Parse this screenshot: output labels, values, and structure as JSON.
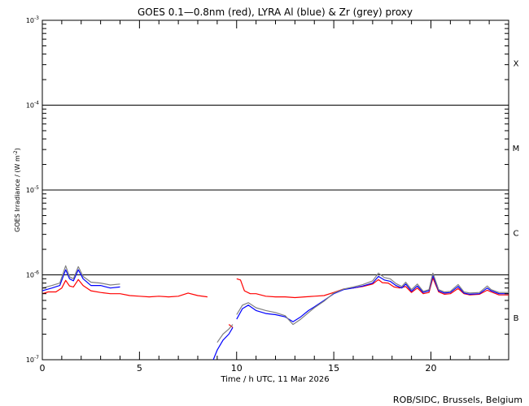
{
  "chart_data": {
    "type": "line",
    "title": "GOES 0.1—0.8nm (red), LYRA Al (blue) & Zr (grey) proxy",
    "xlabel": "Time / h UTC, 11 Mar 2026",
    "ylabel": "GOES Irradiance / (W m",
    "ylabel_sup": "-2",
    "ylabel_close": ")",
    "credit": "ROB/SIDC, Brussels, Belgium",
    "x_scale": "linear",
    "y_scale": "log",
    "xlim": [
      0,
      24
    ],
    "ylim": [
      1e-07,
      0.001
    ],
    "x_ticks": [
      0,
      5,
      10,
      15,
      20
    ],
    "x_tick_labels": [
      "0",
      "5",
      "10",
      "15",
      "20"
    ],
    "y_tick_values": [
      1e-07,
      1e-06,
      1e-05,
      0.0001,
      0.001
    ],
    "y_tick_labels": [
      {
        "base": "10",
        "exp": "-7"
      },
      {
        "base": "10",
        "exp": "-6"
      },
      {
        "base": "10",
        "exp": "-5"
      },
      {
        "base": "10",
        "exp": "-4"
      },
      {
        "base": "10",
        "exp": "-3"
      }
    ],
    "class_lines": [
      1e-06,
      1e-05,
      0.0001
    ],
    "class_labels": [
      {
        "label": "X",
        "y": 0.000316
      },
      {
        "label": "M",
        "y": 3.16e-05
      },
      {
        "label": "C",
        "y": 3.16e-06
      },
      {
        "label": "B",
        "y": 3.16e-07
      }
    ],
    "grid": false,
    "series": [
      {
        "color": "#ff0000",
        "points": [
          [
            0,
            6e-07
          ],
          [
            0.3,
            6.3e-07
          ],
          [
            0.7,
            6.3e-07
          ],
          [
            1.0,
            7e-07
          ],
          [
            1.2,
            8.6e-07
          ],
          [
            1.4,
            7.4e-07
          ],
          [
            1.6,
            7.2e-07
          ],
          [
            1.85,
            8.8e-07
          ],
          [
            2.1,
            7.5e-07
          ],
          [
            2.5,
            6.5e-07
          ],
          [
            3.0,
            6.2e-07
          ],
          [
            3.5,
            6e-07
          ],
          [
            4.0,
            6e-07
          ],
          [
            4.5,
            5.7e-07
          ],
          [
            5.0,
            5.6e-07
          ],
          [
            5.5,
            5.5e-07
          ],
          [
            6.0,
            5.6e-07
          ],
          [
            6.5,
            5.5e-07
          ],
          [
            7.0,
            5.6e-07
          ],
          [
            7.5,
            6.1e-07
          ],
          [
            8.0,
            5.7e-07
          ],
          [
            8.5,
            5.5e-07
          ],
          null,
          [
            9.6,
            2.6e-07
          ],
          [
            9.7,
            2.5e-07
          ],
          [
            9.8,
            2.4e-07
          ],
          null,
          [
            10.0,
            9e-07
          ],
          [
            10.2,
            8.7e-07
          ],
          [
            10.4,
            6.5e-07
          ],
          [
            10.7,
            6e-07
          ],
          [
            11.0,
            6e-07
          ],
          [
            11.5,
            5.6e-07
          ],
          [
            12.0,
            5.5e-07
          ],
          [
            12.5,
            5.5e-07
          ],
          [
            13.0,
            5.4e-07
          ],
          [
            13.5,
            5.5e-07
          ],
          [
            14.0,
            5.6e-07
          ],
          [
            14.5,
            5.7e-07
          ],
          [
            15.0,
            6.2e-07
          ],
          [
            15.5,
            6.8e-07
          ],
          [
            16.0,
            7e-07
          ],
          [
            16.5,
            7.3e-07
          ],
          [
            17.0,
            7.8e-07
          ],
          [
            17.3,
            8.8e-07
          ],
          [
            17.5,
            8.1e-07
          ],
          [
            17.8,
            8e-07
          ],
          [
            18.1,
            7.2e-07
          ],
          [
            18.4,
            7e-07
          ],
          [
            18.7,
            7.3e-07
          ],
          [
            19.0,
            6.2e-07
          ],
          [
            19.3,
            7e-07
          ],
          [
            19.6,
            6e-07
          ],
          [
            19.9,
            6.2e-07
          ],
          [
            20.1,
            9.2e-07
          ],
          [
            20.4,
            6.3e-07
          ],
          [
            20.7,
            5.9e-07
          ],
          [
            21.0,
            6e-07
          ],
          [
            21.4,
            6.9e-07
          ],
          [
            21.7,
            6e-07
          ],
          [
            22.0,
            5.8e-07
          ],
          [
            22.5,
            5.9e-07
          ],
          [
            22.9,
            6.6e-07
          ],
          [
            23.1,
            6.3e-07
          ],
          [
            23.5,
            5.8e-07
          ],
          [
            24.0,
            5.8e-07
          ]
        ]
      },
      {
        "color": "#0000ff",
        "points": [
          [
            0,
            6.5e-07
          ],
          [
            0.5,
            7e-07
          ],
          [
            0.9,
            7.5e-07
          ],
          [
            1.2,
            1.15e-06
          ],
          [
            1.4,
            9e-07
          ],
          [
            1.6,
            8.5e-07
          ],
          [
            1.85,
            1.15e-06
          ],
          [
            2.1,
            9e-07
          ],
          [
            2.5,
            7.5e-07
          ],
          [
            3.0,
            7.5e-07
          ],
          [
            3.5,
            7e-07
          ],
          [
            4.0,
            7.2e-07
          ],
          null,
          [
            8.8,
            1e-07
          ],
          [
            9.0,
            1.3e-07
          ],
          [
            9.3,
            1.7e-07
          ],
          [
            9.6,
            2e-07
          ],
          [
            9.8,
            2.4e-07
          ],
          null,
          [
            10.0,
            3e-07
          ],
          [
            10.3,
            4e-07
          ],
          [
            10.6,
            4.4e-07
          ],
          [
            11.0,
            3.8e-07
          ],
          [
            11.5,
            3.5e-07
          ],
          [
            12.0,
            3.4e-07
          ],
          [
            12.5,
            3.2e-07
          ],
          [
            12.9,
            2.8e-07
          ],
          [
            13.3,
            3.2e-07
          ],
          [
            13.7,
            3.8e-07
          ],
          [
            14.0,
            4.2e-07
          ],
          [
            14.5,
            5e-07
          ],
          [
            15.0,
            6e-07
          ],
          [
            15.5,
            6.7e-07
          ],
          [
            16.0,
            7e-07
          ],
          [
            16.5,
            7.4e-07
          ],
          [
            17.0,
            8e-07
          ],
          [
            17.3,
            9.6e-07
          ],
          [
            17.6,
            8.7e-07
          ],
          [
            17.9,
            8.4e-07
          ],
          [
            18.2,
            7.5e-07
          ],
          [
            18.5,
            7e-07
          ],
          [
            18.7,
            7.8e-07
          ],
          [
            19.0,
            6.4e-07
          ],
          [
            19.3,
            7.4e-07
          ],
          [
            19.6,
            6.2e-07
          ],
          [
            19.9,
            6.5e-07
          ],
          [
            20.1,
            9.8e-07
          ],
          [
            20.4,
            6.5e-07
          ],
          [
            20.7,
            6.1e-07
          ],
          [
            21.0,
            6.2e-07
          ],
          [
            21.4,
            7.3e-07
          ],
          [
            21.7,
            6.1e-07
          ],
          [
            22.0,
            5.9e-07
          ],
          [
            22.5,
            6e-07
          ],
          [
            22.9,
            7e-07
          ],
          [
            23.1,
            6.5e-07
          ],
          [
            23.5,
            6e-07
          ],
          [
            24.0,
            6e-07
          ]
        ]
      },
      {
        "color": "#808080",
        "points": [
          [
            0,
            7e-07
          ],
          [
            0.5,
            7.5e-07
          ],
          [
            0.9,
            8e-07
          ],
          [
            1.2,
            1.28e-06
          ],
          [
            1.4,
            9.5e-07
          ],
          [
            1.6,
            9e-07
          ],
          [
            1.85,
            1.25e-06
          ],
          [
            2.1,
            9.6e-07
          ],
          [
            2.5,
            8.2e-07
          ],
          [
            3.0,
            8e-07
          ],
          [
            3.5,
            7.6e-07
          ],
          [
            4.0,
            7.8e-07
          ],
          null,
          [
            9.0,
            1.6e-07
          ],
          [
            9.3,
            2e-07
          ],
          [
            9.6,
            2.3e-07
          ],
          [
            9.8,
            2.6e-07
          ],
          null,
          [
            10.0,
            3.4e-07
          ],
          [
            10.3,
            4.4e-07
          ],
          [
            10.6,
            4.7e-07
          ],
          [
            11.0,
            4.1e-07
          ],
          [
            11.5,
            3.8e-07
          ],
          [
            12.0,
            3.6e-07
          ],
          [
            12.5,
            3.3e-07
          ],
          [
            12.9,
            2.6e-07
          ],
          [
            13.3,
            3e-07
          ],
          [
            13.7,
            3.6e-07
          ],
          [
            14.0,
            4.1e-07
          ],
          [
            14.5,
            4.9e-07
          ],
          [
            15.0,
            6.1e-07
          ],
          [
            15.5,
            6.8e-07
          ],
          [
            16.0,
            7.2e-07
          ],
          [
            16.5,
            7.7e-07
          ],
          [
            17.0,
            8.5e-07
          ],
          [
            17.3,
            1.05e-06
          ],
          [
            17.6,
            9.3e-07
          ],
          [
            17.9,
            9e-07
          ],
          [
            18.2,
            7.9e-07
          ],
          [
            18.5,
            7.3e-07
          ],
          [
            18.7,
            8.2e-07
          ],
          [
            19.0,
            6.7e-07
          ],
          [
            19.3,
            7.8e-07
          ],
          [
            19.6,
            6.4e-07
          ],
          [
            19.9,
            6.7e-07
          ],
          [
            20.1,
            1.05e-06
          ],
          [
            20.4,
            6.7e-07
          ],
          [
            20.7,
            6.3e-07
          ],
          [
            21.0,
            6.4e-07
          ],
          [
            21.4,
            7.7e-07
          ],
          [
            21.7,
            6.3e-07
          ],
          [
            22.0,
            6.1e-07
          ],
          [
            22.5,
            6.2e-07
          ],
          [
            22.9,
            7.4e-07
          ],
          [
            23.1,
            6.7e-07
          ],
          [
            23.5,
            6.2e-07
          ],
          [
            24.0,
            6.2e-07
          ]
        ]
      }
    ]
  }
}
